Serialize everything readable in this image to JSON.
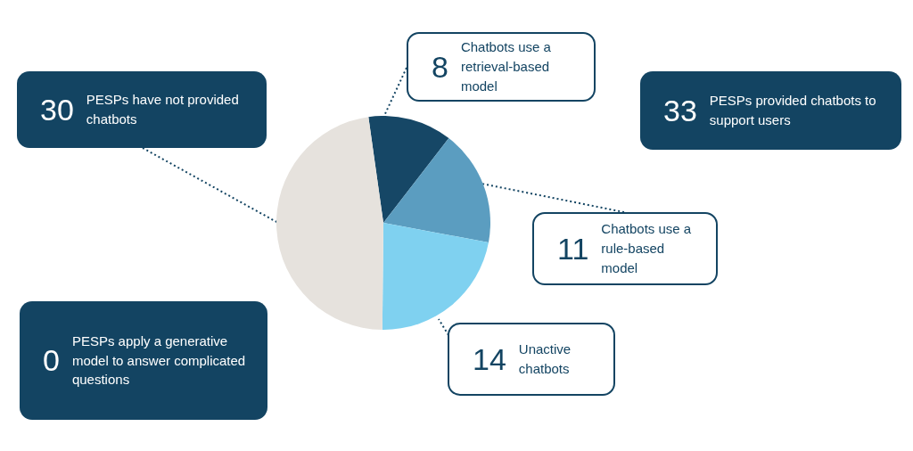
{
  "chart_data": {
    "type": "pie",
    "categories": [
      "Chatbots use a retrieval-based model",
      "Chatbots use a rule-based model",
      "Unactive chatbots",
      "PESPs have not provided chatbots"
    ],
    "values": [
      8,
      11,
      14,
      30
    ],
    "colors": [
      "#164766",
      "#5b9dc0",
      "#7fd1f0",
      "#e6e2dd"
    ],
    "data_labels": true,
    "annotations": [
      "33 PESPs provided chatbots to support users",
      "0 PESPs apply a generative model to answer complicated questions"
    ]
  }
}
